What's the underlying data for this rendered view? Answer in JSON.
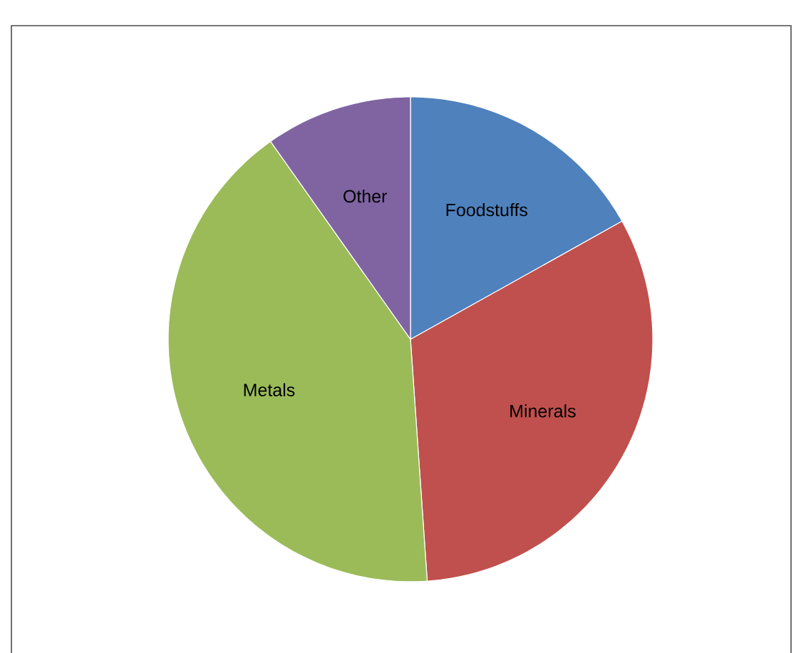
{
  "chart_data": {
    "type": "pie",
    "categories": [
      "Foodstuffs",
      "Minerals",
      "Metals",
      "Other"
    ],
    "values": [
      16.9,
      32.0,
      41.3,
      9.8
    ],
    "colors": [
      "#4f81bd",
      "#c0504d",
      "#9bbb59",
      "#8064a2"
    ]
  }
}
